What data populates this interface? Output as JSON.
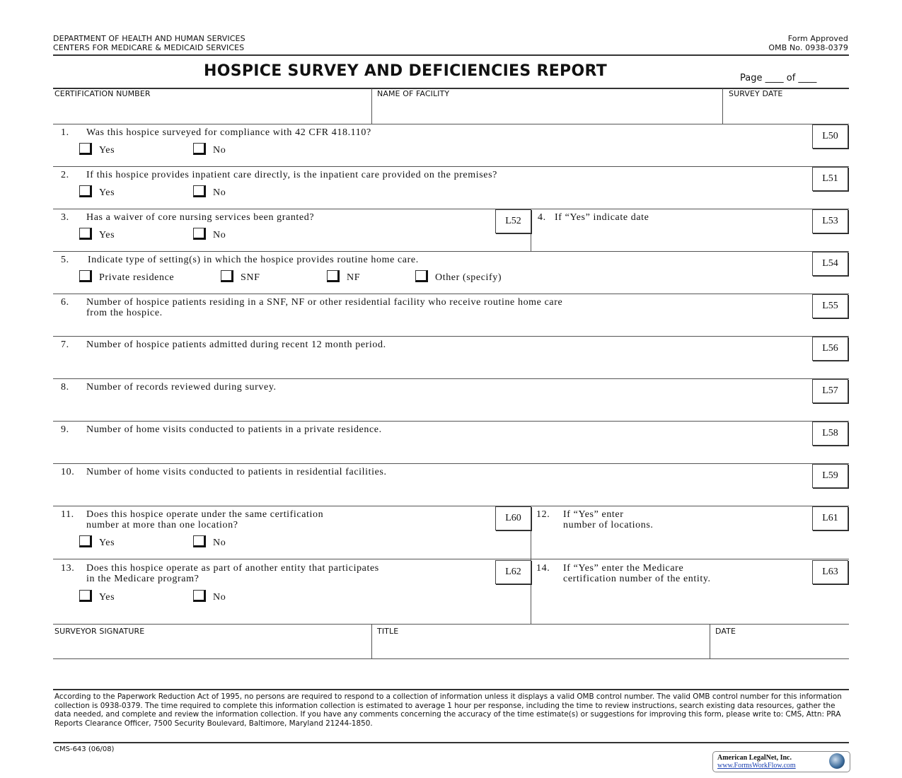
{
  "header": {
    "agency_line1": "DEPARTMENT OF HEALTH AND HUMAN SERVICES",
    "agency_line2": "CENTERS FOR MEDICARE & MEDICAID SERVICES",
    "approval_line1": "Form Approved",
    "approval_line2": "OMB No. 0938-0379",
    "title": "HOSPICE SURVEY AND DEFICIENCIES REPORT",
    "page_label": "Page ____ of ____"
  },
  "top_fields": {
    "certification_number": "CERTIFICATION NUMBER",
    "facility_name": "NAME OF FACILITY",
    "survey_date": "SURVEY DATE"
  },
  "questions": [
    {
      "num": "1.",
      "text": "Was this hospice surveyed for compliance with 42 CFR 418.110?",
      "code": "L50",
      "options": [
        "Yes",
        "No"
      ]
    },
    {
      "num": "2.",
      "text": "If this hospice provides inpatient care directly, is the inpatient care provided on the premises?",
      "code": "L51",
      "options": [
        "Yes",
        "No"
      ]
    },
    {
      "num": "3.",
      "text": "Has a waiver of core nursing services been granted?",
      "code": "L52",
      "options": [
        "Yes",
        "No"
      ]
    },
    {
      "num": "4.",
      "text": "If “Yes” indicate date",
      "code": "L53"
    },
    {
      "num": "5.",
      "text": "Indicate type of setting(s) in which the hospice provides routine home care.",
      "code": "L54",
      "options": [
        "Private residence",
        "SNF",
        "NF",
        "Other (specify)"
      ]
    },
    {
      "num": "6.",
      "text": "Number of hospice patients residing in a SNF, NF or other residential facility who receive routine home care",
      "text2": "from the hospice.",
      "code": "L55"
    },
    {
      "num": "7.",
      "text": "Number of hospice patients admitted during recent 12 month period.",
      "code": "L56"
    },
    {
      "num": "8.",
      "text": "Number of records reviewed during survey.",
      "code": "L57"
    },
    {
      "num": "9.",
      "text": "Number of home visits conducted to patients in a private residence.",
      "code": "L58"
    },
    {
      "num": "10.",
      "text": "Number of home visits conducted to patients in residential facilities.",
      "code": "L59"
    },
    {
      "num": "11.",
      "text": "Does this hospice operate under the same certification",
      "text2": "number at more than one location?",
      "code": "L60",
      "options": [
        "Yes",
        "No"
      ]
    },
    {
      "num": "12.",
      "text": "If “Yes” enter",
      "text2": "number of locations.",
      "code": "L61"
    },
    {
      "num": "13.",
      "text": "Does this hospice operate as part of another entity that participates",
      "text2": "in the Medicare program?",
      "code": "L62",
      "options": [
        "Yes",
        "No"
      ]
    },
    {
      "num": "14.",
      "text": "If “Yes” enter the Medicare",
      "text2": "certification number of the entity.",
      "code": "L63"
    }
  ],
  "bottom_fields": {
    "surveyor_signature": "SURVEYOR SIGNATURE",
    "title": "TITLE",
    "date": "DATE"
  },
  "footer": {
    "paperwork_notice": "According to the Paperwork Reduction Act of 1995, no persons are required to respond to a collection of information unless it displays a valid OMB control number. The valid OMB control number for this information collection is 0938-0379. The time required to complete this information collection is estimated to average 1 hour per response, including the time to review instructions, search existing data resources, gather the data needed, and complete and review the information collection. If you have any comments concerning the accuracy of the time estimate(s) or suggestions for improving this form, please write to: CMS, Attn: PRA Reports Clearance Officer, 7500 Security Boulevard, Baltimore, Maryland 21244-1850.",
    "form_number": "CMS-643 (06/08)",
    "logo_company": "American LegalNet, Inc.",
    "logo_url": "www.FormsWorkFlow.com"
  }
}
